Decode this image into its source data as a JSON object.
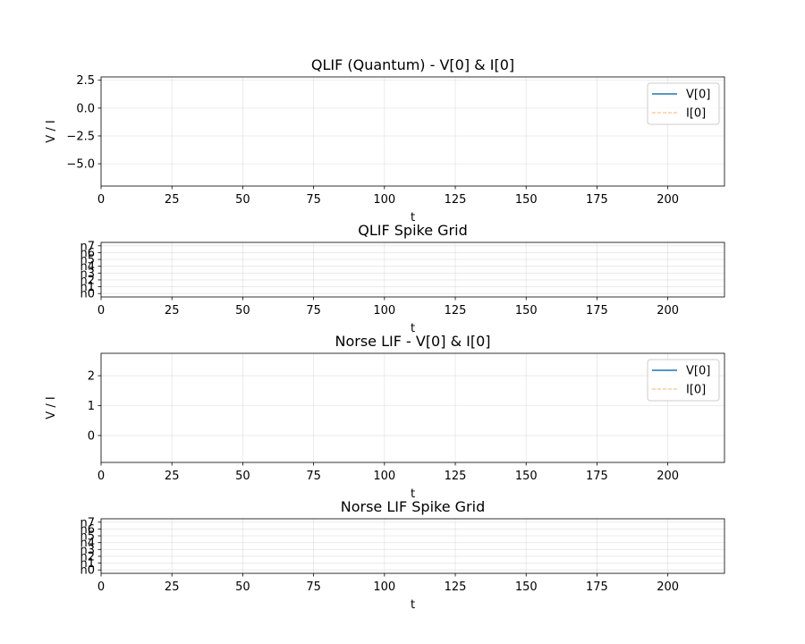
{
  "chart_data": [
    {
      "type": "line",
      "title": "QLIF (Quantum) - V[0] & I[0]",
      "xlabel": "t",
      "ylabel": "V / I",
      "xlim": [
        0,
        220
      ],
      "ylim": [
        -7.0,
        2.8
      ],
      "xticks": [
        0,
        25,
        50,
        75,
        100,
        125,
        150,
        175,
        200
      ],
      "yticks": [
        2.5,
        0.0,
        -2.5,
        -5.0
      ],
      "ytick_labels": [
        "2.5",
        "0.0",
        "−2.5",
        "−5.0"
      ],
      "grid": true,
      "legend_position": "top-right",
      "series": [
        {
          "name": "V[0]",
          "color": "#1f77b4",
          "style": "solid",
          "x": [],
          "y": []
        },
        {
          "name": "I[0]",
          "color": "#ff7f0e",
          "style": "dashed",
          "x": [],
          "y": []
        }
      ]
    },
    {
      "type": "scatter",
      "title": "QLIF Spike Grid",
      "xlabel": "t",
      "ylabel": "",
      "xlim": [
        0,
        220
      ],
      "ylim": [
        -0.5,
        7.5
      ],
      "xticks": [
        0,
        25,
        50,
        75,
        100,
        125,
        150,
        175,
        200
      ],
      "yticks": [
        0,
        1,
        2,
        3,
        4,
        5,
        6,
        7
      ],
      "ytick_labels": [
        "n0",
        "n1",
        "n2",
        "n3",
        "n4",
        "n5",
        "n6",
        "n7"
      ],
      "grid": true,
      "series": []
    },
    {
      "type": "line",
      "title": "Norse LIF - V[0] & I[0]",
      "xlabel": "t",
      "ylabel": "V / I",
      "xlim": [
        0,
        220
      ],
      "ylim": [
        -0.9,
        2.75
      ],
      "xticks": [
        0,
        25,
        50,
        75,
        100,
        125,
        150,
        175,
        200
      ],
      "yticks": [
        2,
        1,
        0
      ],
      "ytick_labels": [
        "2",
        "1",
        "0"
      ],
      "grid": true,
      "legend_position": "top-right",
      "series": [
        {
          "name": "V[0]",
          "color": "#1f77b4",
          "style": "solid",
          "x": [],
          "y": []
        },
        {
          "name": "I[0]",
          "color": "#ff7f0e",
          "style": "dashed",
          "x": [],
          "y": []
        }
      ]
    },
    {
      "type": "scatter",
      "title": "Norse LIF Spike Grid",
      "xlabel": "t",
      "ylabel": "",
      "xlim": [
        0,
        220
      ],
      "ylim": [
        -0.5,
        7.5
      ],
      "xticks": [
        0,
        25,
        50,
        75,
        100,
        125,
        150,
        175,
        200
      ],
      "yticks": [
        0,
        1,
        2,
        3,
        4,
        5,
        6,
        7
      ],
      "ytick_labels": [
        "n0",
        "n1",
        "n2",
        "n3",
        "n4",
        "n5",
        "n6",
        "n7"
      ],
      "grid": true,
      "series": []
    }
  ]
}
